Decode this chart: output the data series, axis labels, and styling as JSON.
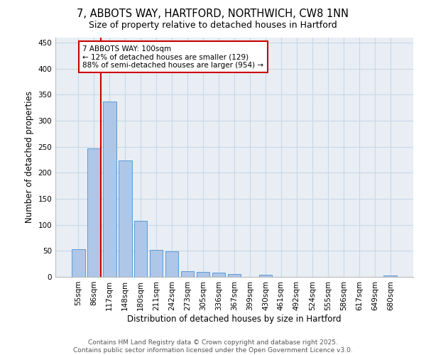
{
  "title_line1": "7, ABBOTS WAY, HARTFORD, NORTHWICH, CW8 1NN",
  "title_line2": "Size of property relative to detached houses in Hartford",
  "xlabel": "Distribution of detached houses by size in Hartford",
  "ylabel": "Number of detached properties",
  "categories": [
    "55sqm",
    "86sqm",
    "117sqm",
    "148sqm",
    "180sqm",
    "211sqm",
    "242sqm",
    "273sqm",
    "305sqm",
    "336sqm",
    "367sqm",
    "399sqm",
    "430sqm",
    "461sqm",
    "492sqm",
    "524sqm",
    "555sqm",
    "586sqm",
    "617sqm",
    "649sqm",
    "680sqm"
  ],
  "values": [
    53,
    247,
    337,
    224,
    108,
    52,
    49,
    11,
    10,
    8,
    6,
    0,
    4,
    0,
    0,
    0,
    0,
    0,
    0,
    0,
    3
  ],
  "bar_color": "#aec6e8",
  "bar_edge_color": "#5b9bd5",
  "vline_color": "#cc0000",
  "annotation_box_text": "7 ABBOTS WAY: 100sqm\n← 12% of detached houses are smaller (129)\n88% of semi-detached houses are larger (954) →",
  "annotation_box_color": "#cc0000",
  "grid_color": "#c8d8e8",
  "background_color": "#e8eef4",
  "footer_text": "Contains HM Land Registry data © Crown copyright and database right 2025.\nContains public sector information licensed under the Open Government Licence v3.0.",
  "ylim": [
    0,
    460
  ],
  "yticks": [
    0,
    50,
    100,
    150,
    200,
    250,
    300,
    350,
    400,
    450
  ],
  "title_fontsize": 10.5,
  "subtitle_fontsize": 9,
  "axis_label_fontsize": 8.5,
  "tick_fontsize": 7.5,
  "footer_fontsize": 6.5,
  "annotation_fontsize": 7.5
}
